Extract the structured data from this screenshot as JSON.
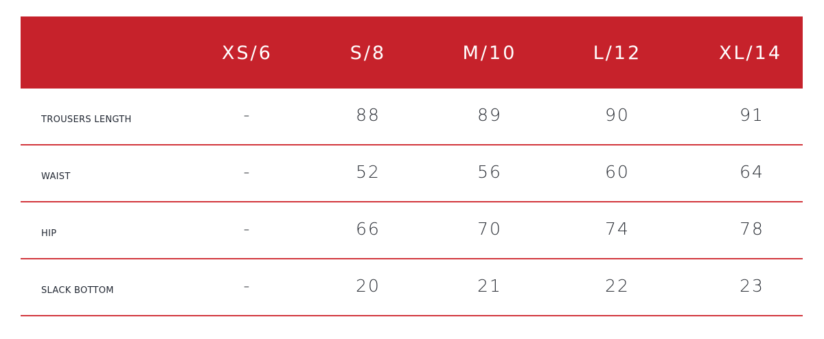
{
  "colors": {
    "header_bg": "#c6222b",
    "divider": "#d2363c"
  },
  "table": {
    "headers": [
      "",
      "XS/6",
      "S/8",
      "M/10",
      "L/12",
      "XL/14"
    ],
    "rows": [
      {
        "label": "TROUSERS LENGTH",
        "values": [
          "-",
          "88",
          "89",
          "90",
          "91"
        ]
      },
      {
        "label": "WAIST",
        "values": [
          "-",
          "52",
          "56",
          "60",
          "64"
        ]
      },
      {
        "label": "HIP",
        "values": [
          "-",
          "66",
          "70",
          "74",
          "78"
        ]
      },
      {
        "label": "SLACK BOTTOM",
        "values": [
          "-",
          "20",
          "21",
          "22",
          "23"
        ]
      }
    ]
  }
}
